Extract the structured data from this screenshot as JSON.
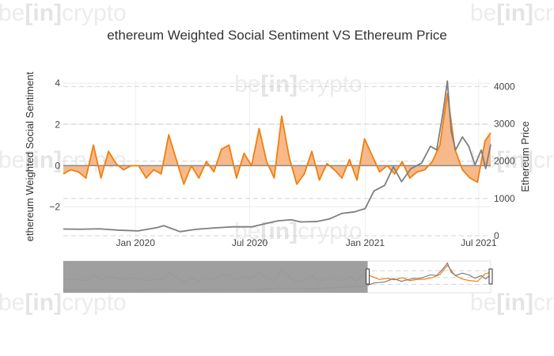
{
  "watermark": {
    "prefix": "be",
    "bracket_open": "[",
    "middle": "in",
    "bracket_close": "]",
    "suffix": "crypto"
  },
  "chart_data": {
    "type": "line",
    "title": "ethereum Weighted Social Sentiment VS Ethereum Price",
    "xlabel": "",
    "x_ticks": [
      "Jan 2020",
      "Jul 2020",
      "Jan 2021",
      "Jul 2021"
    ],
    "x_range": [
      "2019-09-08",
      "2021-07-20"
    ],
    "y_left": {
      "label": "ethereum Weighted Social Sentiment",
      "range": [
        -3.4,
        4.2
      ],
      "ticks": [
        -2,
        0,
        2,
        4
      ],
      "tick_labels": [
        "−2",
        "0",
        "2",
        "4"
      ]
    },
    "y_right": {
      "label": "Ethereum Price",
      "range": [
        0,
        4200
      ],
      "ticks": [
        0,
        1000,
        2000,
        3000,
        4000
      ],
      "tick_labels": [
        "0",
        "1000",
        "2000",
        "3000",
        "4000"
      ]
    },
    "grid": true,
    "legend": "none",
    "range_slider": {
      "visible": true,
      "selected_start": "2021-01-05",
      "selected_end": "2021-07-20"
    },
    "colors": {
      "sentiment": "#f07f0e",
      "sentiment_fill": "#f7b989",
      "price": "#7f7f7f",
      "zero_line": "#8a8a8a",
      "grid": "#d4d4d4",
      "slider_mask": "#9a9a9a"
    },
    "series": [
      {
        "axis": "left",
        "dates": [
          "2019-09-08",
          "2019-09-20",
          "2019-10-02",
          "2019-10-14",
          "2019-10-26",
          "2019-11-07",
          "2019-11-19",
          "2019-12-01",
          "2019-12-13",
          "2019-12-25",
          "2020-01-06",
          "2020-01-18",
          "2020-01-30",
          "2020-02-11",
          "2020-02-23",
          "2020-03-06",
          "2020-03-18",
          "2020-03-30",
          "2020-04-11",
          "2020-04-23",
          "2020-05-05",
          "2020-05-17",
          "2020-05-29",
          "2020-06-10",
          "2020-06-22",
          "2020-07-04",
          "2020-07-16",
          "2020-07-28",
          "2020-08-09",
          "2020-08-21",
          "2020-09-02",
          "2020-09-14",
          "2020-09-26",
          "2020-10-08",
          "2020-10-20",
          "2020-11-01",
          "2020-11-13",
          "2020-11-25",
          "2020-12-07",
          "2020-12-19",
          "2020-12-31",
          "2021-01-12",
          "2021-01-24",
          "2021-02-05",
          "2021-02-17",
          "2021-03-01",
          "2021-03-13",
          "2021-03-25",
          "2021-04-06",
          "2021-04-18",
          "2021-04-30",
          "2021-05-12",
          "2021-05-24",
          "2021-06-05",
          "2021-06-17",
          "2021-06-29",
          "2021-07-11",
          "2021-07-20"
        ],
        "values": [
          -0.4,
          -0.2,
          -0.3,
          -0.6,
          1.0,
          -0.6,
          0.7,
          0.1,
          -0.2,
          0.0,
          0.0,
          -0.6,
          -0.2,
          -0.4,
          1.5,
          0.3,
          -0.9,
          0.0,
          -0.6,
          0.2,
          -0.3,
          0.8,
          1.0,
          -0.6,
          0.6,
          0.0,
          1.8,
          0.2,
          -0.6,
          2.4,
          0.4,
          -0.9,
          -0.4,
          0.7,
          -0.7,
          0.1,
          -0.2,
          -0.6,
          0.3,
          -0.7,
          1.3,
          0.5,
          -0.3,
          0.0,
          -0.4,
          0.2,
          -0.6,
          -0.3,
          -0.2,
          0.2,
          1.0,
          3.5,
          0.8,
          -0.2,
          -0.6,
          -0.8,
          1.2,
          1.6
        ]
      },
      {
        "axis": "right",
        "dates": [
          "2019-09-08",
          "2019-10-05",
          "2019-11-05",
          "2019-12-05",
          "2020-01-05",
          "2020-02-05",
          "2020-02-15",
          "2020-03-12",
          "2020-04-05",
          "2020-05-05",
          "2020-06-05",
          "2020-07-05",
          "2020-07-25",
          "2020-08-15",
          "2020-09-05",
          "2020-09-20",
          "2020-10-15",
          "2020-11-05",
          "2020-11-25",
          "2020-12-15",
          "2021-01-01",
          "2021-01-15",
          "2021-02-01",
          "2021-02-15",
          "2021-02-28",
          "2021-03-15",
          "2021-04-01",
          "2021-04-15",
          "2021-04-25",
          "2021-05-05",
          "2021-05-12",
          "2021-05-18",
          "2021-05-25",
          "2021-06-05",
          "2021-06-15",
          "2021-06-25",
          "2021-07-05",
          "2021-07-12",
          "2021-07-20"
        ],
        "values": [
          180,
          175,
          185,
          150,
          130,
          220,
          270,
          110,
          170,
          210,
          240,
          240,
          320,
          400,
          430,
          370,
          380,
          450,
          600,
          640,
          730,
          1200,
          1350,
          1850,
          1450,
          1800,
          1950,
          2400,
          2300,
          3300,
          4150,
          2800,
          2300,
          2650,
          2400,
          1900,
          2300,
          1800,
          2450
        ]
      }
    ]
  }
}
